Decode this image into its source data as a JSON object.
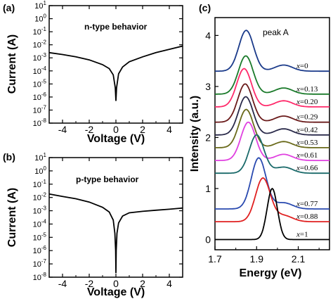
{
  "chart_data": [
    {
      "panel": "(a)",
      "type": "line",
      "annotation": "n-type behavior",
      "xlabel": "Voltage (V)",
      "ylabel": "Current (A)",
      "xlim": [
        -5,
        5
      ],
      "ylim": [
        -8,
        1
      ],
      "yscale": "log",
      "x_ticks": [
        -4,
        -2,
        0,
        2,
        4
      ],
      "y_ticks": [
        1,
        0,
        -1,
        -2,
        -3,
        -4,
        -5,
        -6,
        -7,
        -8
      ],
      "y_tick_labels": [
        {
          "base": "10",
          "exp": "1"
        },
        {
          "base": "10",
          "exp": "0"
        },
        {
          "base": "10",
          "exp": "-1"
        },
        {
          "base": "10",
          "exp": "-2"
        },
        {
          "base": "10",
          "exp": "-3"
        },
        {
          "base": "10",
          "exp": "-4"
        },
        {
          "base": "10",
          "exp": "-5"
        },
        {
          "base": "10",
          "exp": "-6"
        },
        {
          "base": "10",
          "exp": "-7"
        },
        {
          "base": "10",
          "exp": "-8"
        }
      ],
      "series": [
        {
          "x": [
            -5,
            -4,
            -3,
            -2,
            -1,
            -0.5,
            -0.2,
            -0.05,
            0,
            0.05,
            0.2,
            0.5,
            1,
            2,
            3,
            4,
            5
          ],
          "y": [
            0.0025,
            0.0018,
            0.0012,
            0.0007,
            0.0003,
            0.00015,
            5e-05,
            5e-06,
            5e-07,
            5e-06,
            6e-05,
            0.0002,
            0.0005,
            0.0012,
            0.0025,
            0.0045,
            0.008
          ]
        }
      ]
    },
    {
      "panel": "(b)",
      "type": "line",
      "annotation": "p-type behavior",
      "xlabel": "Voltage (V)",
      "ylabel": "Current (A)",
      "xlim": [
        -5,
        5
      ],
      "ylim": [
        -8,
        1
      ],
      "yscale": "log",
      "x_ticks": [
        -4,
        -2,
        0,
        2,
        4
      ],
      "y_ticks": [
        1,
        0,
        -1,
        -2,
        -3,
        -4,
        -5,
        -6,
        -7,
        -8
      ],
      "y_tick_labels": [
        {
          "base": "10",
          "exp": "1"
        },
        {
          "base": "10",
          "exp": "0"
        },
        {
          "base": "10",
          "exp": "-1"
        },
        {
          "base": "10",
          "exp": "-2"
        },
        {
          "base": "10",
          "exp": "-3"
        },
        {
          "base": "10",
          "exp": "-4"
        },
        {
          "base": "10",
          "exp": "-5"
        },
        {
          "base": "10",
          "exp": "-6"
        },
        {
          "base": "10",
          "exp": "-7"
        },
        {
          "base": "10",
          "exp": "-8"
        }
      ],
      "series": [
        {
          "x": [
            -5,
            -4,
            -3,
            -2,
            -1,
            -0.5,
            -0.2,
            -0.08,
            -0.02,
            0,
            0.02,
            0.08,
            0.2,
            0.5,
            1,
            2,
            3,
            4,
            5
          ],
          "y": [
            0.018,
            0.012,
            0.008,
            0.0045,
            0.0018,
            0.0008,
            0.0002,
            2e-05,
            1e-06,
            2e-08,
            1e-06,
            2e-05,
            0.00012,
            0.0004,
            0.0007,
            0.0009,
            0.0011,
            0.0013,
            0.0016
          ]
        }
      ]
    },
    {
      "panel": "(c)",
      "type": "line",
      "xlabel": "Energy (eV)",
      "ylabel": "Intensity (a.u.)",
      "xlim": [
        1.7,
        2.25
      ],
      "ylim": [
        -0.2,
        4.35
      ],
      "x_ticks": [
        1.7,
        1.9,
        2.1
      ],
      "y_ticks": [
        0,
        1,
        2,
        3,
        4
      ],
      "annotation": "peak A",
      "series_label_prefix": "x",
      "series": [
        {
          "name": "=0",
          "color": "#1a3a8a",
          "offset": 3.3,
          "peak": 1.85,
          "width": 0.05,
          "height": 0.8
        },
        {
          "name": "=0.13",
          "color": "#1a7a2a",
          "offset": 2.85,
          "peak": 1.848,
          "width": 0.05,
          "height": 0.75
        },
        {
          "name": "=0.20",
          "color": "#ff2a6a",
          "offset": 2.6,
          "peak": 1.84,
          "width": 0.05,
          "height": 0.75
        },
        {
          "name": "=0.29",
          "color": "#6a1a1a",
          "offset": 2.3,
          "peak": 1.845,
          "width": 0.05,
          "height": 0.75
        },
        {
          "name": "=0.42",
          "color": "#2a2a4a",
          "offset": 2.05,
          "peak": 1.848,
          "width": 0.05,
          "height": 0.75
        },
        {
          "name": "=0.53",
          "color": "#6a6a1a",
          "offset": 1.8,
          "peak": 1.85,
          "width": 0.05,
          "height": 0.75
        },
        {
          "name": "=0.61",
          "color": "#e040e0",
          "offset": 1.55,
          "peak": 1.86,
          "width": 0.05,
          "height": 0.75
        },
        {
          "name": "=0.66",
          "color": "#1a6a6a",
          "offset": 1.3,
          "peak": 1.9,
          "width": 0.05,
          "height": 0.75
        },
        {
          "name": "=0.77",
          "color": "#2a4ab0",
          "offset": 0.6,
          "peak": 1.91,
          "width": 0.05,
          "height": 1.0
        },
        {
          "name": "=0.88",
          "color": "#e02020",
          "offset": 0.35,
          "peak": 1.93,
          "width": 0.05,
          "height": 0.85
        },
        {
          "name": "=1",
          "color": "#000000",
          "offset": 0.0,
          "peak": 1.975,
          "width": 0.035,
          "height": 1.0
        }
      ]
    }
  ]
}
